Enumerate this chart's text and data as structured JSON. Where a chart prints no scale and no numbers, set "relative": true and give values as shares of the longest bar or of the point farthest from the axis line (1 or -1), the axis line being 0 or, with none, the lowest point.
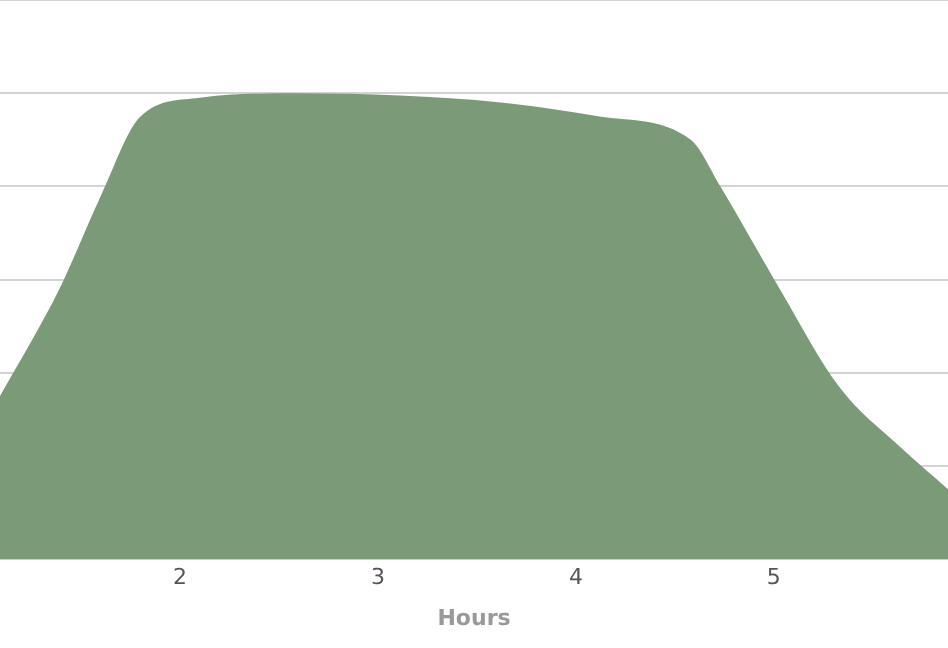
{
  "chart_data": {
    "type": "area",
    "xlabel": "Hours",
    "relative": true,
    "x": [
      1.09,
      1.39,
      1.6,
      1.8,
      2.1,
      2.61,
      3.11,
      3.62,
      4.12,
      4.58,
      4.73,
      5.03,
      5.33,
      5.64,
      5.88
    ],
    "series": [
      {
        "color": "#7b9a78",
        "values": [
          0.35,
          0.58,
          0.78,
          0.95,
          0.99,
          1,
          0.995,
          0.98,
          0.95,
          0.9,
          0.8,
          0.58,
          0.37,
          0.24,
          0.15
        ]
      }
    ],
    "xlim": [
      1.09,
      5.88
    ],
    "xticks": [
      2,
      3,
      4,
      5
    ],
    "grid": "y",
    "legend": false
  }
}
